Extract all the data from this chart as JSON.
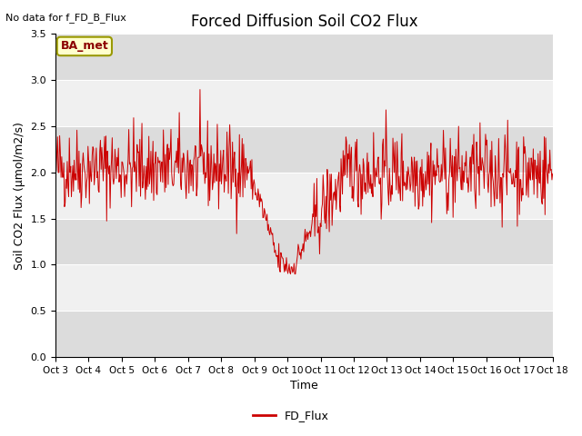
{
  "title": "Forced Diffusion Soil CO2 Flux",
  "ylabel": "Soil CO2 Flux (μmol/m2/s)",
  "xlabel": "Time",
  "top_left_text": "No data for f_FD_B_Flux",
  "legend_label": "FD_Flux",
  "box_label": "BA_met",
  "ylim": [
    0.0,
    3.5
  ],
  "yticks": [
    0.0,
    0.5,
    1.0,
    1.5,
    2.0,
    2.5,
    3.0,
    3.5
  ],
  "line_color": "#cc0000",
  "background_color": "#dcdcdc",
  "band_color_light": "#f0f0f0",
  "band_color_dark": "#dcdcdc",
  "n_days": 15,
  "seed": 42
}
